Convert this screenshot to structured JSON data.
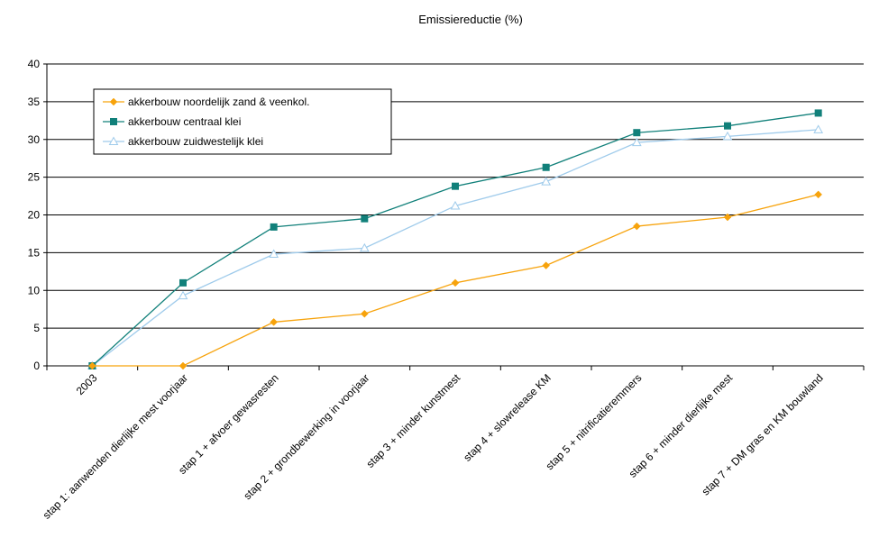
{
  "chart_data": {
    "type": "line",
    "title": "Emissiereductie (%)",
    "xlabel": "",
    "ylabel": "",
    "ylim": [
      0,
      40
    ],
    "yticks": [
      0,
      5,
      10,
      15,
      20,
      25,
      30,
      35,
      40
    ],
    "grid": "horizontal",
    "legend_position": "top-left",
    "categories": [
      "2003",
      "stap 1: aanwenden dierlijke mest voorjaar",
      "stap 1 + afvoer gewasresten",
      "stap 2 + grondbewerking in voorjaar",
      "stap 3 + minder kunstmest",
      "stap 4 +  slowrelease KM",
      "stap 5 +  nitrificatieremmers",
      "stap 6 + minder dierlijke mest",
      "stap 7 + DM gras en KM bouwland"
    ],
    "series": [
      {
        "name": "akkerbouw noordelijk zand & veenkol.",
        "color": "#F7A30C",
        "marker": "diamond",
        "values": [
          0,
          0,
          5.8,
          6.9,
          11.0,
          13.3,
          18.5,
          19.7,
          22.7
        ]
      },
      {
        "name": "akkerbouw centraal klei",
        "color": "#11807A",
        "marker": "square",
        "values": [
          0,
          11.0,
          18.4,
          19.5,
          23.8,
          26.3,
          30.9,
          31.8,
          33.5
        ]
      },
      {
        "name": "akkerbouw zuidwestelijk klei",
        "color": "#9FCBEB",
        "marker": "triangle",
        "values": [
          0,
          9.3,
          14.8,
          15.6,
          21.2,
          24.4,
          29.6,
          30.4,
          31.3
        ]
      }
    ]
  }
}
